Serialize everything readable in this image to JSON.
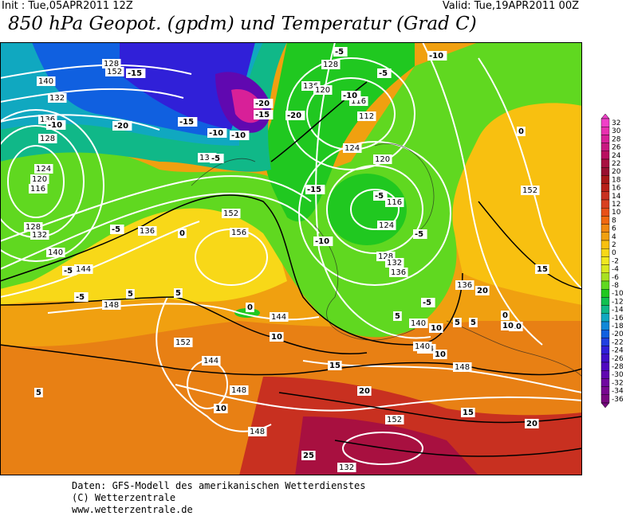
{
  "header": {
    "init": "Init : Tue,05APR2011 12Z",
    "valid": "Valid: Tue,19APR2011 00Z",
    "title": "850 hPa Geopot. (gpdm) und Temperatur (Grad C)"
  },
  "map": {
    "geopotential_labels": [
      "140",
      "132",
      "136",
      "128",
      "124",
      "120",
      "116",
      "128",
      "132",
      "136",
      "140",
      "144",
      "148",
      "152",
      "156",
      "132",
      "128",
      "136",
      "120",
      "116",
      "112",
      "124",
      "120",
      "116",
      "124",
      "128",
      "132",
      "136",
      "140",
      "144",
      "148",
      "152",
      "136",
      "140",
      "144",
      "148",
      "152",
      "144",
      "148",
      "152",
      "132",
      "152",
      "128"
    ],
    "temperature_labels": [
      "-5",
      "-15",
      "-20",
      "-10",
      "-20",
      "-15",
      "-10",
      "-5",
      "-20",
      "-10",
      "-5",
      "-10",
      "-15",
      "-5",
      "-5",
      "0",
      "-5",
      "0",
      "-15",
      "-10",
      "-5",
      "-5",
      "-10",
      "-5",
      "5",
      "0",
      "5",
      "10",
      "15",
      "20",
      "10",
      "5",
      "0",
      "10",
      "15",
      "20",
      "25",
      "10",
      "10",
      "5",
      "15",
      "20",
      "10",
      "5",
      "5"
    ]
  },
  "color_scale": {
    "labels": [
      "32",
      "30",
      "28",
      "26",
      "24",
      "22",
      "20",
      "18",
      "16",
      "14",
      "12",
      "10",
      "8",
      "6",
      "4",
      "2",
      "0",
      "-2",
      "-4",
      "-6",
      "-8",
      "-10",
      "-12",
      "-14",
      "-16",
      "-18",
      "-20",
      "-22",
      "-24",
      "-26",
      "-28",
      "-30",
      "-32",
      "-34",
      "-36"
    ],
    "colors": [
      "#f040c8",
      "#e830b0",
      "#d82098",
      "#c81880",
      "#b81060",
      "#a81040",
      "#981030",
      "#a81818",
      "#b82018",
      "#c83020",
      "#d84020",
      "#e85018",
      "#f06810",
      "#f08810",
      "#f0a010",
      "#f8c010",
      "#f8d818",
      "#f0e820",
      "#d8e820",
      "#a8e020",
      "#60d820",
      "#20c820",
      "#10c050",
      "#10b888",
      "#10a8c0",
      "#1088d8",
      "#1060e0",
      "#2040e0",
      "#3020d8",
      "#4010c8",
      "#5008c0",
      "#6008b0",
      "#7008a0",
      "#780890",
      "#780880"
    ]
  },
  "footer": {
    "line1": "Daten: GFS-Modell des amerikanischen Wetterdienstes",
    "line2": "(C) Wetterzentrale",
    "line3": "www.wetterzentrale.de"
  }
}
